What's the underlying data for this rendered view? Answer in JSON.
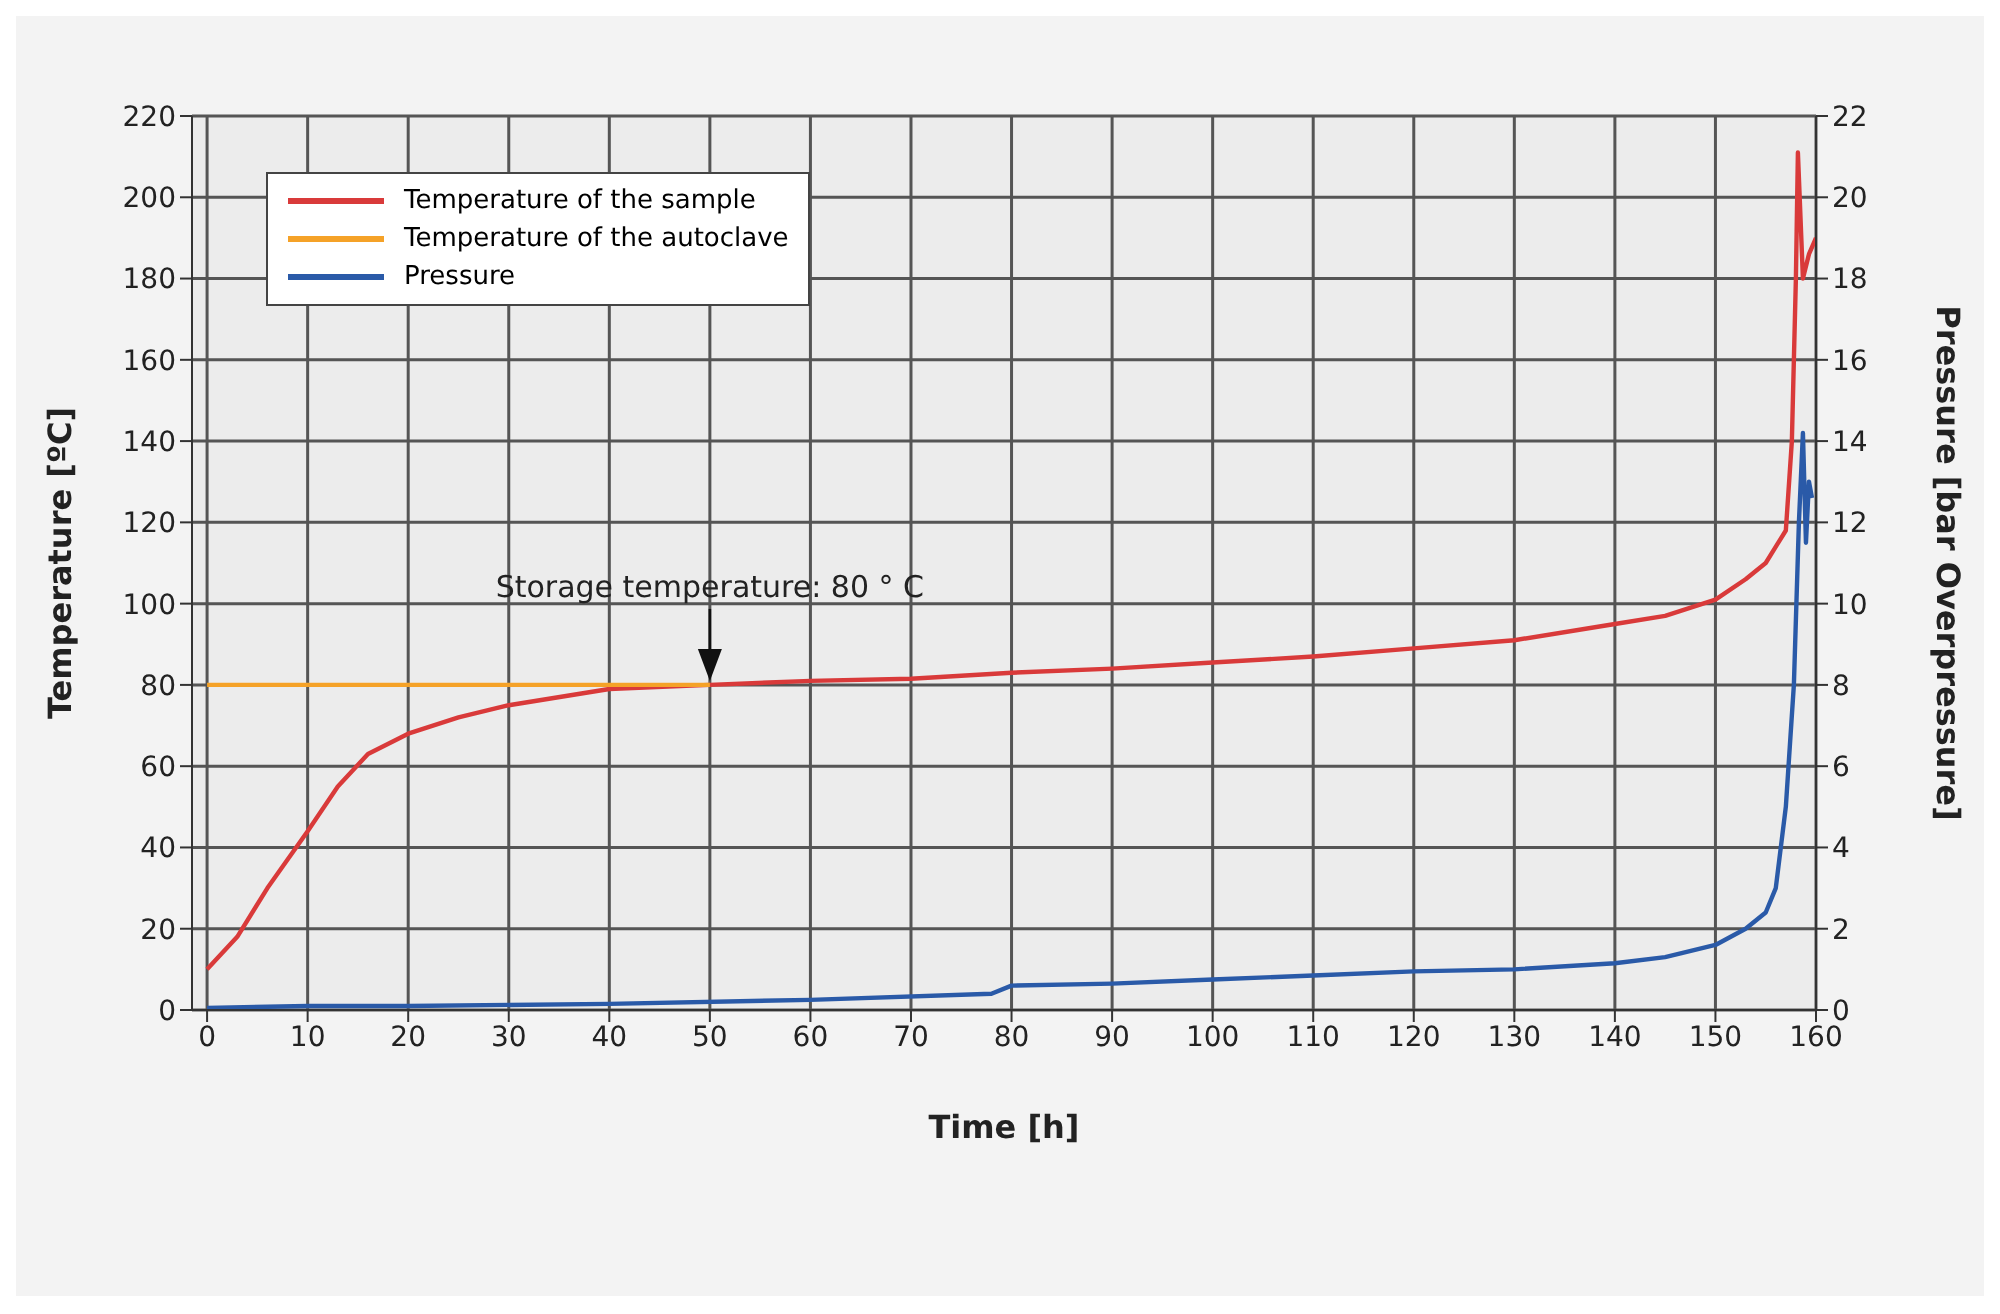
{
  "chart_data": {
    "type": "line",
    "xlabel": "Time [h]",
    "ylabel": "Temperature [ºC]",
    "y2label": "Pressure [bar Overpressure]",
    "xlim": [
      -1.5,
      160
    ],
    "xticks": [
      0,
      10,
      20,
      30,
      40,
      50,
      60,
      70,
      80,
      90,
      100,
      110,
      120,
      130,
      140,
      150,
      160
    ],
    "ylim": [
      0,
      220
    ],
    "yticks": [
      0,
      20,
      40,
      60,
      80,
      100,
      120,
      140,
      160,
      180,
      200,
      220
    ],
    "y2lim": [
      0,
      22
    ],
    "y2ticks": [
      0,
      2,
      4,
      6,
      8,
      10,
      12,
      14,
      16,
      18,
      20,
      22
    ],
    "grid": true,
    "legend": "top left",
    "marker": "none",
    "line_style": "solid",
    "annotations": [
      {
        "text": "Storage temperature: 80 ° C",
        "x": 50,
        "y": 80
      }
    ],
    "series": [
      {
        "name": "Temperature of the sample",
        "color": "#d93a3a",
        "x": [
          0,
          3,
          6,
          10,
          13,
          16,
          20,
          25,
          30,
          40,
          50,
          60,
          70,
          80,
          90,
          100,
          110,
          120,
          130,
          140,
          145,
          150,
          153,
          155,
          157,
          157.6,
          158,
          158.2,
          158.7,
          159.3,
          160
        ],
        "values": [
          10,
          18,
          30,
          44,
          55,
          63,
          68,
          72,
          75,
          79,
          80,
          81,
          81.5,
          83,
          84,
          85.5,
          87,
          89,
          91,
          95,
          97,
          101,
          106,
          110,
          118,
          140,
          180,
          211,
          180,
          186,
          190
        ]
      },
      {
        "name": "Temperature of the autoclave",
        "color": "#f5a228",
        "x": [
          0,
          50
        ],
        "values": [
          80,
          80
        ]
      },
      {
        "name": "Pressure",
        "color": "#2a5aa8",
        "axis": "y2",
        "x": [
          0,
          10,
          20,
          40,
          60,
          78,
          80,
          90,
          100,
          110,
          120,
          130,
          140,
          145,
          150,
          153,
          155,
          156,
          157,
          157.8,
          158.3,
          158.7,
          159,
          159.3,
          159.6
        ],
        "values": [
          0.05,
          0.1,
          0.1,
          0.15,
          0.25,
          0.4,
          0.6,
          0.65,
          0.75,
          0.85,
          0.95,
          1,
          1.15,
          1.3,
          1.6,
          2,
          2.4,
          3,
          5,
          8,
          12,
          14.2,
          11.5,
          13,
          12.6
        ]
      }
    ]
  }
}
